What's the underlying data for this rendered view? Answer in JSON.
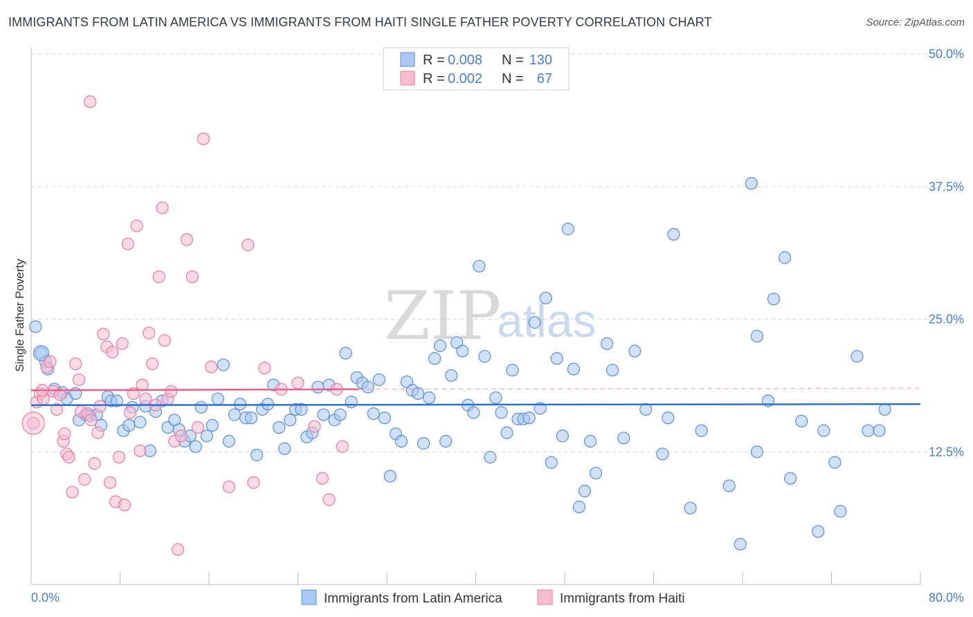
{
  "header": {
    "title": "IMMIGRANTS FROM LATIN AMERICA VS IMMIGRANTS FROM HAITI SINGLE FATHER POVERTY CORRELATION CHART",
    "source": "Source: ZipAtlas.com"
  },
  "watermark": {
    "zip": "ZIP",
    "atlas": "atlas"
  },
  "legend_top": {
    "rows": [
      {
        "r_label": "R = ",
        "r_value": "0.008",
        "n_label": "N = ",
        "n_value": "130",
        "color": "#4a7fcf"
      },
      {
        "r_label": "R = ",
        "r_value": "0.002",
        "n_label": "N = ",
        "n_value": "67",
        "color": "#e87ba0"
      }
    ]
  },
  "legend_bottom": {
    "items": [
      {
        "label": "Immigrants from Latin America"
      },
      {
        "label": "Immigrants from Haiti"
      }
    ]
  },
  "colors": {
    "blue_fill": "#aac8f0",
    "blue_stroke": "#5a8fd8",
    "blue_line": "#2f6fce",
    "pink_fill": "#f8bcd0",
    "pink_stroke": "#e87ba0",
    "pink_line": "#e8608e",
    "grid": "#d5d5d5",
    "axis_text": "#4a7fcf"
  },
  "chart_data": {
    "type": "scatter",
    "title": "IMMIGRANTS FROM LATIN AMERICA VS IMMIGRANTS FROM HAITI SINGLE FATHER POVERTY CORRELATION CHART",
    "xlabel": "",
    "ylabel": "Single Father Poverty",
    "xlim": [
      0,
      80
    ],
    "ylim": [
      0,
      50
    ],
    "y_ticks": [
      12.5,
      25.0,
      37.5,
      50.0
    ],
    "y_tick_labels": [
      "12.5%",
      "25.0%",
      "37.5%",
      "50.0%"
    ],
    "x_tick_labels": [
      "0.0%",
      "80.0%"
    ],
    "grid": true,
    "series": [
      {
        "name": "Immigrants from Latin America",
        "R": 0.008,
        "N": 130,
        "trend": {
          "x": [
            0,
            80
          ],
          "y": [
            16.9,
            17.0
          ]
        },
        "points": [
          [
            0.4,
            24.3
          ],
          [
            0.9,
            21.8
          ],
          [
            1.3,
            21.0
          ],
          [
            1.5,
            20.3
          ],
          [
            2.1,
            18.4
          ],
          [
            2.8,
            18.1
          ],
          [
            3.2,
            17.5
          ],
          [
            4.0,
            18.0
          ],
          [
            4.3,
            15.5
          ],
          [
            4.9,
            16.0
          ],
          [
            5.3,
            15.9
          ],
          [
            5.9,
            16.0
          ],
          [
            6.3,
            15.0
          ],
          [
            6.9,
            17.7
          ],
          [
            7.2,
            17.3
          ],
          [
            7.7,
            17.3
          ],
          [
            8.3,
            14.5
          ],
          [
            8.8,
            15.0
          ],
          [
            9.1,
            16.7
          ],
          [
            9.8,
            15.3
          ],
          [
            10.3,
            16.8
          ],
          [
            10.7,
            12.6
          ],
          [
            11.2,
            16.3
          ],
          [
            11.8,
            17.3
          ],
          [
            12.3,
            14.8
          ],
          [
            12.9,
            15.5
          ],
          [
            13.3,
            14.6
          ],
          [
            13.8,
            13.5
          ],
          [
            14.3,
            14.0
          ],
          [
            14.8,
            13.0
          ],
          [
            15.3,
            16.7
          ],
          [
            15.8,
            14.0
          ],
          [
            16.3,
            15.0
          ],
          [
            16.8,
            17.5
          ],
          [
            17.3,
            20.7
          ],
          [
            17.8,
            13.5
          ],
          [
            18.3,
            16.0
          ],
          [
            18.8,
            17.0
          ],
          [
            19.3,
            15.7
          ],
          [
            19.8,
            15.7
          ],
          [
            20.3,
            12.2
          ],
          [
            20.8,
            16.5
          ],
          [
            21.3,
            17.0
          ],
          [
            21.8,
            18.8
          ],
          [
            22.3,
            14.8
          ],
          [
            22.8,
            12.8
          ],
          [
            23.3,
            15.5
          ],
          [
            23.8,
            16.5
          ],
          [
            24.3,
            16.5
          ],
          [
            24.8,
            13.9
          ],
          [
            25.3,
            14.3
          ],
          [
            25.8,
            18.6
          ],
          [
            26.3,
            16.0
          ],
          [
            26.8,
            18.8
          ],
          [
            27.3,
            15.5
          ],
          [
            27.8,
            16.0
          ],
          [
            28.3,
            21.8
          ],
          [
            28.8,
            17.2
          ],
          [
            29.3,
            19.5
          ],
          [
            29.8,
            19.0
          ],
          [
            30.3,
            18.6
          ],
          [
            30.8,
            16.1
          ],
          [
            31.3,
            19.3
          ],
          [
            31.8,
            15.7
          ],
          [
            32.3,
            10.2
          ],
          [
            32.8,
            14.2
          ],
          [
            33.3,
            13.5
          ],
          [
            33.8,
            19.1
          ],
          [
            34.3,
            18.3
          ],
          [
            34.8,
            18.0
          ],
          [
            35.3,
            13.3
          ],
          [
            35.8,
            17.6
          ],
          [
            36.3,
            21.3
          ],
          [
            36.8,
            22.5
          ],
          [
            37.3,
            13.5
          ],
          [
            37.8,
            19.7
          ],
          [
            38.3,
            22.8
          ],
          [
            38.8,
            22.0
          ],
          [
            39.3,
            16.9
          ],
          [
            39.8,
            16.2
          ],
          [
            40.3,
            30.0
          ],
          [
            40.8,
            21.5
          ],
          [
            41.3,
            12.0
          ],
          [
            41.8,
            17.6
          ],
          [
            42.3,
            16.2
          ],
          [
            42.8,
            14.3
          ],
          [
            43.3,
            20.2
          ],
          [
            43.8,
            15.6
          ],
          [
            44.3,
            15.6
          ],
          [
            44.8,
            15.7
          ],
          [
            45.3,
            24.7
          ],
          [
            45.8,
            16.6
          ],
          [
            46.3,
            27.0
          ],
          [
            46.8,
            11.5
          ],
          [
            47.3,
            21.3
          ],
          [
            47.8,
            14.0
          ],
          [
            48.3,
            33.5
          ],
          [
            48.8,
            20.3
          ],
          [
            49.3,
            7.3
          ],
          [
            49.8,
            8.8
          ],
          [
            50.3,
            13.5
          ],
          [
            50.8,
            10.5
          ],
          [
            51.8,
            22.7
          ],
          [
            52.3,
            20.2
          ],
          [
            53.3,
            13.8
          ],
          [
            54.3,
            22.0
          ],
          [
            55.3,
            16.5
          ],
          [
            56.8,
            12.3
          ],
          [
            57.3,
            15.7
          ],
          [
            57.8,
            33.0
          ],
          [
            59.3,
            7.2
          ],
          [
            60.3,
            14.5
          ],
          [
            62.8,
            9.3
          ],
          [
            63.8,
            3.8
          ],
          [
            64.8,
            37.8
          ],
          [
            65.3,
            23.4
          ],
          [
            66.3,
            17.3
          ],
          [
            66.8,
            26.9
          ],
          [
            67.8,
            30.8
          ],
          [
            68.3,
            10.0
          ],
          [
            69.3,
            15.4
          ],
          [
            70.8,
            5.0
          ],
          [
            71.3,
            14.5
          ],
          [
            72.3,
            11.5
          ],
          [
            72.8,
            6.9
          ],
          [
            74.3,
            21.5
          ],
          [
            75.3,
            14.5
          ],
          [
            76.3,
            14.5
          ],
          [
            76.8,
            16.5
          ],
          [
            65.3,
            12.5
          ]
        ]
      },
      {
        "name": "Immigrants from Haiti",
        "R": 0.002,
        "N": 67,
        "trend": {
          "x": [
            0,
            29.5
          ],
          "y": [
            18.3,
            18.4
          ]
        },
        "points": [
          [
            0.2,
            15.2
          ],
          [
            0.5,
            17.2
          ],
          [
            0.8,
            18.0
          ],
          [
            1.1,
            17.5
          ],
          [
            1.4,
            20.5
          ],
          [
            1.7,
            21.0
          ],
          [
            2.0,
            18.2
          ],
          [
            2.3,
            16.5
          ],
          [
            2.6,
            17.9
          ],
          [
            2.9,
            13.5
          ],
          [
            3.2,
            12.3
          ],
          [
            3.4,
            12.0
          ],
          [
            3.7,
            8.7
          ],
          [
            4.0,
            20.8
          ],
          [
            4.3,
            19.3
          ],
          [
            4.5,
            16.3
          ],
          [
            4.8,
            9.9
          ],
          [
            5.1,
            16.1
          ],
          [
            5.4,
            15.5
          ],
          [
            5.7,
            11.4
          ],
          [
            6.0,
            14.3
          ],
          [
            6.2,
            16.8
          ],
          [
            6.5,
            23.6
          ],
          [
            6.8,
            22.4
          ],
          [
            7.1,
            9.6
          ],
          [
            7.3,
            21.9
          ],
          [
            7.6,
            7.8
          ],
          [
            7.9,
            12.0
          ],
          [
            8.2,
            22.7
          ],
          [
            8.4,
            7.5
          ],
          [
            8.7,
            32.1
          ],
          [
            8.9,
            16.2
          ],
          [
            9.2,
            18.0
          ],
          [
            9.5,
            33.8
          ],
          [
            9.8,
            12.6
          ],
          [
            10.0,
            18.8
          ],
          [
            10.3,
            17.5
          ],
          [
            10.6,
            23.7
          ],
          [
            10.9,
            20.8
          ],
          [
            11.2,
            16.9
          ],
          [
            11.5,
            29.0
          ],
          [
            11.8,
            35.5
          ],
          [
            12.0,
            23.0
          ],
          [
            12.3,
            17.5
          ],
          [
            12.6,
            18.2
          ],
          [
            12.9,
            13.5
          ],
          [
            13.2,
            3.3
          ],
          [
            13.5,
            14.0
          ],
          [
            14.0,
            32.5
          ],
          [
            14.5,
            29.0
          ],
          [
            15.0,
            14.8
          ],
          [
            15.5,
            42.0
          ],
          [
            16.2,
            20.5
          ],
          [
            17.8,
            9.2
          ],
          [
            19.5,
            32.0
          ],
          [
            20.0,
            9.6
          ],
          [
            21.0,
            20.4
          ],
          [
            22.5,
            18.4
          ],
          [
            24.0,
            19.0
          ],
          [
            25.5,
            14.9
          ],
          [
            26.2,
            10.0
          ],
          [
            26.8,
            8.0
          ],
          [
            27.5,
            18.4
          ],
          [
            28.0,
            13.0
          ],
          [
            5.3,
            45.5
          ],
          [
            3.0,
            14.2
          ],
          [
            1.0,
            18.3
          ]
        ]
      }
    ]
  }
}
